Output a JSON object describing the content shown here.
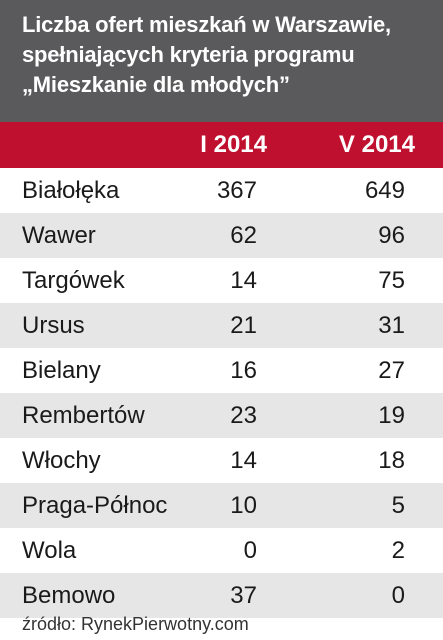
{
  "title_lines": [
    "Liczba ofert mieszkań w Warszawie,",
    "spełniających kryteria programu",
    "„Mieszkanie dla młodych”"
  ],
  "colors": {
    "title_bg": "#5a5a5c",
    "header_bg": "#c0102f",
    "row_alt_bg": "#e6e6e6"
  },
  "chart_data": {
    "type": "table",
    "title": "Liczba ofert mieszkań w Warszawie, spełniających kryteria programu „Mieszkanie dla młodych”",
    "columns": [
      "",
      "I 2014",
      "V 2014"
    ],
    "rows": [
      {
        "district": "Białołęka",
        "i_2014": "367",
        "v_2014": "649"
      },
      {
        "district": "Wawer",
        "i_2014": "62",
        "v_2014": "96"
      },
      {
        "district": "Targówek",
        "i_2014": "14",
        "v_2014": "75"
      },
      {
        "district": "Ursus",
        "i_2014": "21",
        "v_2014": "31"
      },
      {
        "district": "Bielany",
        "i_2014": "16",
        "v_2014": "27"
      },
      {
        "district": "Rembertów",
        "i_2014": "23",
        "v_2014": "19"
      },
      {
        "district": "Włochy",
        "i_2014": "14",
        "v_2014": "18"
      },
      {
        "district": "Praga-Północ",
        "i_2014": "10",
        "v_2014": "5"
      },
      {
        "district": "Wola",
        "i_2014": "0",
        "v_2014": "2"
      },
      {
        "district": "Bemowo",
        "i_2014": "37",
        "v_2014": "0"
      }
    ]
  },
  "source": "źródło: RynekPierwotny.com"
}
